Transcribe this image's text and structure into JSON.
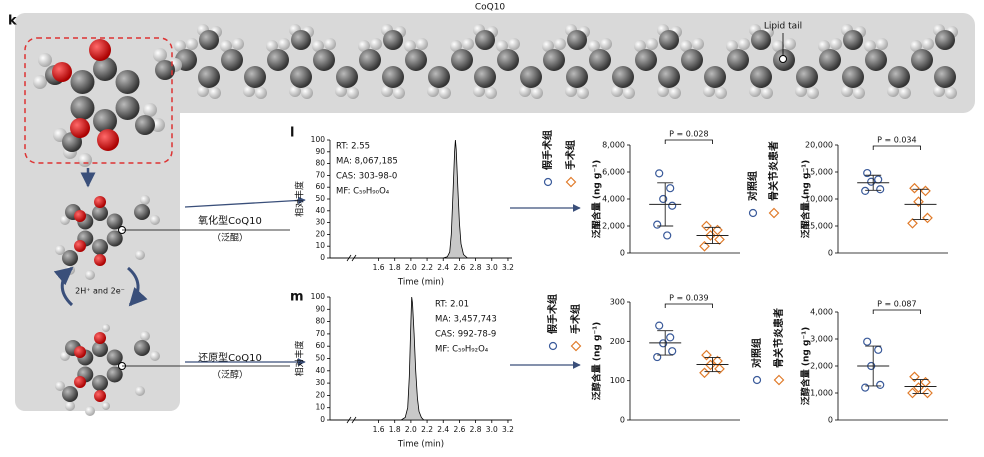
{
  "panel_labels": [
    "k",
    "l",
    "m"
  ],
  "molecule": {
    "title": "CoQ10",
    "lipid_tail": "Lipid tail",
    "oxidized": "氧化型CoQ10",
    "oxidized_note": "（泛醌）",
    "reduced": "还原型CoQ10",
    "reduced_note": "（泛醇）",
    "reaction": "2H⁺ and 2e⁻"
  },
  "chart_data": [
    {
      "type": "area",
      "xlabel": "Time (min)",
      "ylabel": "相对丰度",
      "color": "#c8c8c8",
      "annotations": [
        "RT: 2.55",
        "MA: 8,067,185",
        "CAS: 303-98-0",
        "MF: C₅₉H₉₀O₄"
      ],
      "x": [
        1.0,
        2.4,
        2.45,
        2.48,
        2.5,
        2.52,
        2.54,
        2.55,
        2.56,
        2.58,
        2.6,
        2.62,
        2.65,
        2.7,
        3.25
      ],
      "values": [
        0,
        0,
        1,
        5,
        20,
        55,
        90,
        100,
        92,
        60,
        30,
        12,
        3,
        0,
        0
      ],
      "xlim": [
        1.0,
        3.25
      ],
      "xticks": [
        1.6,
        1.8,
        {
          "value": 2,
          "label": "2.0"
        },
        2.2,
        2.4,
        2.6,
        2.8,
        {
          "value": 3,
          "label": "3.0"
        },
        3.2
      ],
      "ylim": [
        0,
        100
      ],
      "yticks": [
        0,
        10,
        20,
        30,
        40,
        50,
        60,
        70,
        80,
        90,
        100
      ]
    },
    {
      "type": "area",
      "xlabel": "Time (min)",
      "ylabel": "相对丰度",
      "color": "#c8c8c8",
      "annotations": [
        "RT: 2.01",
        "MA: 3,457,743",
        "CAS: 992-78-9",
        "MF: C₅₉H₉₂O₄"
      ],
      "x": [
        1.0,
        1.88,
        1.93,
        1.96,
        1.98,
        2.0,
        2.01,
        2.02,
        2.04,
        2.06,
        2.08,
        2.1,
        2.13,
        2.16,
        3.25
      ],
      "values": [
        0,
        0,
        2,
        10,
        35,
        80,
        100,
        95,
        70,
        40,
        18,
        7,
        2,
        0,
        0
      ],
      "xlim": [
        1.0,
        3.25
      ],
      "xticks": [
        1.6,
        1.8,
        {
          "value": 2,
          "label": "2.0"
        },
        2.2,
        2.4,
        2.6,
        2.8,
        {
          "value": 3,
          "label": "3.0"
        },
        3.2
      ],
      "ylim": [
        0,
        100
      ],
      "yticks": [
        0,
        10,
        20,
        30,
        40,
        50,
        60,
        70,
        80,
        90,
        100
      ]
    },
    {
      "type": "dot",
      "ylabel": "泛醌含量 (ng g⁻¹)",
      "p_label": "P = 0.028",
      "ylim": [
        0,
        8000
      ],
      "yticks": [
        0,
        {
          "value": 2000,
          "label": "2,000"
        },
        {
          "value": 4000,
          "label": "4,000"
        },
        {
          "value": 6000,
          "label": "6,000"
        },
        {
          "value": 8000,
          "label": "8,000"
        }
      ],
      "groups": [
        {
          "name": "假手术组",
          "color": "#3a5a9a",
          "marker": "circle",
          "values": [
            5900,
            4800,
            4000,
            3500,
            2100,
            1300
          ],
          "mean": 3600,
          "sd": 1600
        },
        {
          "name": "手术组",
          "color": "#e07b2a",
          "marker": "diamond",
          "values": [
            2000,
            1700,
            1300,
            1000,
            500
          ],
          "mean": 1300,
          "sd": 600
        }
      ]
    },
    {
      "type": "dot",
      "ylabel": "泛醌含量 (ng g⁻¹)",
      "p_label": "P = 0.034",
      "ylim": [
        0,
        20000
      ],
      "yticks": [
        0,
        {
          "value": 5000,
          "label": "5,000"
        },
        {
          "value": 10000,
          "label": "10,000"
        },
        {
          "value": 15000,
          "label": "15,000"
        },
        {
          "value": 20000,
          "label": "20,000"
        }
      ],
      "groups": [
        {
          "name": "对照组",
          "color": "#3a5a9a",
          "marker": "circle",
          "values": [
            14800,
            13600,
            13200,
            11800,
            11500
          ],
          "mean": 13000,
          "sd": 1400
        },
        {
          "name": "骨关节炎患者",
          "color": "#e07b2a",
          "marker": "diamond",
          "values": [
            12000,
            11500,
            9500,
            6500,
            5500
          ],
          "mean": 9000,
          "sd": 2800
        }
      ]
    },
    {
      "type": "dot",
      "ylabel": "泛醇含量 (ng g⁻¹)",
      "p_label": "P = 0.039",
      "ylim": [
        0,
        300
      ],
      "yticks": [
        0,
        100,
        200,
        300
      ],
      "groups": [
        {
          "name": "假手术组",
          "color": "#3a5a9a",
          "marker": "circle",
          "values": [
            240,
            210,
            195,
            175,
            160
          ],
          "mean": 196,
          "sd": 31
        },
        {
          "name": "手术组",
          "color": "#e07b2a",
          "marker": "diamond",
          "values": [
            165,
            150,
            140,
            130,
            120
          ],
          "mean": 141,
          "sd": 18
        }
      ]
    },
    {
      "type": "dot",
      "ylabel": "泛醇含量 (ng g⁻¹)",
      "p_label": "P = 0.087",
      "ylim": [
        0,
        4000
      ],
      "yticks": [
        0,
        {
          "value": 1000,
          "label": "1,000"
        },
        {
          "value": 2000,
          "label": "2,000"
        },
        {
          "value": 3000,
          "label": "3,000"
        },
        {
          "value": 4000,
          "label": "4,000"
        }
      ],
      "groups": [
        {
          "name": "对照组",
          "color": "#3a5a9a",
          "marker": "circle",
          "values": [
            2900,
            2600,
            2000,
            1300,
            1200
          ],
          "mean": 2000,
          "sd": 740
        },
        {
          "name": "骨关节炎患者",
          "color": "#e07b2a",
          "marker": "diamond",
          "values": [
            1600,
            1400,
            1200,
            1000,
            1000
          ],
          "mean": 1240,
          "sd": 260
        }
      ]
    }
  ]
}
